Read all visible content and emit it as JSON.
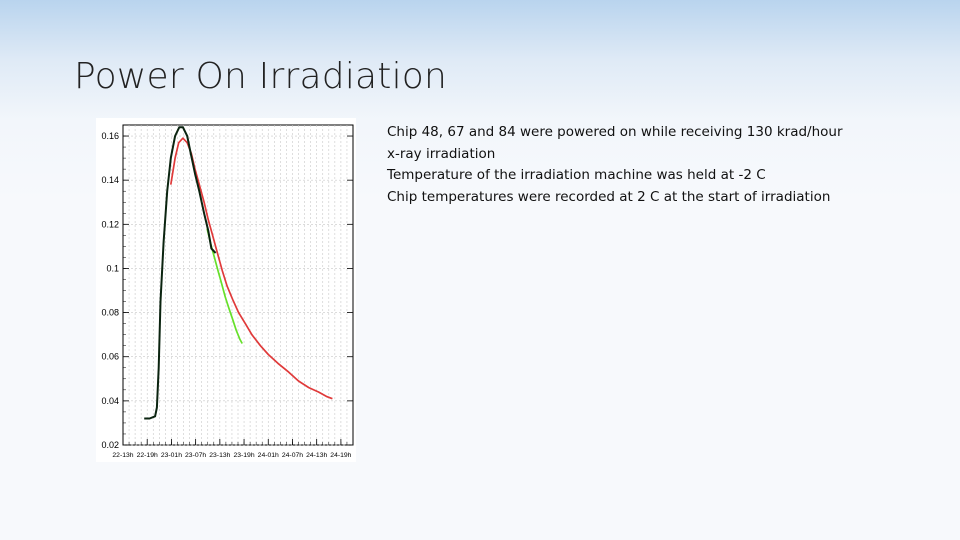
{
  "slide": {
    "title": "Power On Irradiation",
    "bullets": [
      "Chip 48, 67 and 84 were powered on while receiving 130 krad/hour",
      "x-ray irradiation",
      "Temperature of the irradiation machine was held at -2 C",
      "Chip temperatures were recorded at 2 C at the start of irradiation"
    ]
  },
  "chart_data": {
    "type": "line",
    "title": "",
    "xlabel": "",
    "ylabel": "",
    "categories": [
      "22-13h",
      "22-19h",
      "23-01h",
      "23-07h",
      "23-13h",
      "23-19h",
      "24-01h",
      "24-07h",
      "24-13h",
      "24-19h"
    ],
    "yticks": [
      "0.02",
      "0.04",
      "0.06",
      "0.08",
      "0.1",
      "0.12",
      "0.14",
      "0.16"
    ],
    "ylim": [
      0.02,
      0.165
    ],
    "grid": true,
    "colors": {
      "black": "#0b2410",
      "red": "#e03a3a",
      "green": "#66e02a"
    },
    "series": [
      {
        "color": "black",
        "x": [
          3.5,
          4.4,
          5.3,
          5.6,
          5.9,
          6.2,
          6.7,
          7.3,
          7.9,
          8.6,
          9.3,
          9.9,
          10.6,
          11.2,
          11.9,
          12.6,
          13.4,
          14.1,
          14.6,
          15.3
        ],
        "y": [
          0.032,
          0.032,
          0.033,
          0.037,
          0.055,
          0.085,
          0.112,
          0.135,
          0.15,
          0.16,
          0.164,
          0.164,
          0.16,
          0.152,
          0.143,
          0.135,
          0.125,
          0.117,
          0.109,
          0.107
        ]
      },
      {
        "color": "red",
        "x": [
          7.9,
          8.6,
          9.2,
          9.9,
          10.6,
          11.3,
          11.9,
          12.6,
          13.4,
          14.1,
          14.8,
          15.6,
          16.4,
          17.2,
          18.1,
          19.1,
          20.2,
          21.3,
          22.7,
          24.0,
          25.6,
          27.4,
          29.0,
          30.7,
          32.3,
          33.6,
          34.6
        ],
        "y": [
          0.138,
          0.15,
          0.157,
          0.159,
          0.157,
          0.152,
          0.145,
          0.138,
          0.13,
          0.122,
          0.115,
          0.107,
          0.099,
          0.092,
          0.086,
          0.08,
          0.075,
          0.07,
          0.065,
          0.061,
          0.057,
          0.053,
          0.049,
          0.046,
          0.044,
          0.042,
          0.041
        ]
      },
      {
        "color": "green",
        "x": [
          13.9,
          14.5,
          15.1,
          15.7,
          16.3,
          16.9,
          17.5,
          18.1,
          18.7,
          19.3,
          19.7
        ],
        "y": [
          0.118,
          0.111,
          0.105,
          0.099,
          0.093,
          0.087,
          0.082,
          0.077,
          0.072,
          0.068,
          0.066
        ]
      }
    ]
  }
}
